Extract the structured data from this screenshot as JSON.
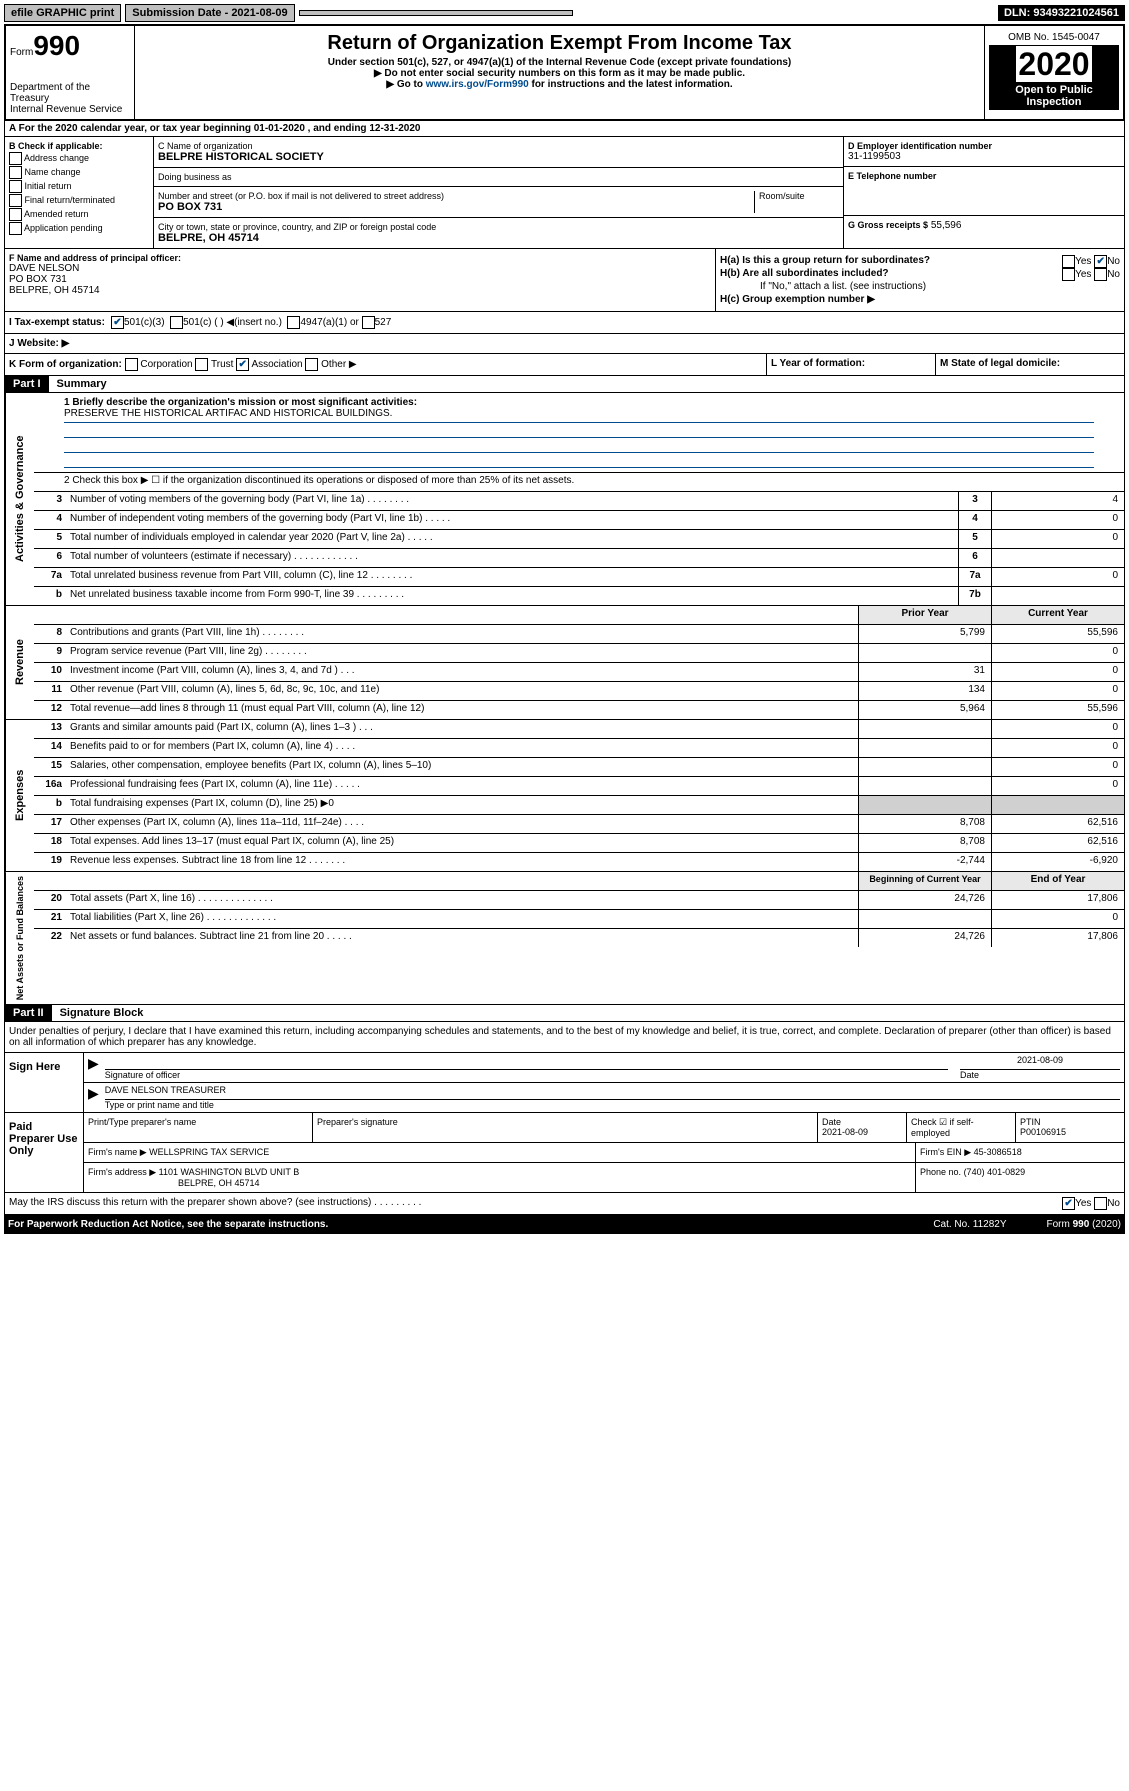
{
  "colors": {
    "link": "#004b8d",
    "black": "#000000",
    "white": "#ffffff",
    "shade": "#d0d0d0"
  },
  "topbar": {
    "efile": "efile GRAPHIC print",
    "submission": "Submission Date - 2021-08-09",
    "dln": "DLN: 93493221024561"
  },
  "header": {
    "form_label": "Form",
    "form_num": "990",
    "dept": "Department of the Treasury\nInternal Revenue Service",
    "title": "Return of Organization Exempt From Income Tax",
    "sub1": "Under section 501(c), 527, or 4947(a)(1) of the Internal Revenue Code (except private foundations)",
    "sub2": "▶ Do not enter social security numbers on this form as it may be made public.",
    "sub3_pre": "▶ Go to ",
    "sub3_link": "www.irs.gov/Form990",
    "sub3_post": " for instructions and the latest information.",
    "omb": "OMB No. 1545-0047",
    "year": "2020",
    "open1": "Open to Public",
    "open2": "Inspection"
  },
  "lineA": "A For the 2020 calendar year, or tax year beginning 01-01-2020    , and ending 12-31-2020",
  "blockB": {
    "title": "B Check if applicable:",
    "opts": [
      "Address change",
      "Name change",
      "Initial return",
      "Final return/terminated",
      "Amended return",
      "Application pending"
    ]
  },
  "blockC": {
    "name_lbl": "C Name of organization",
    "name": "BELPRE HISTORICAL SOCIETY",
    "dba_lbl": "Doing business as",
    "dba": "",
    "addr_lbl": "Number and street (or P.O. box if mail is not delivered to street address)",
    "room_lbl": "Room/suite",
    "addr": "PO BOX 731",
    "city_lbl": "City or town, state or province, country, and ZIP or foreign postal code",
    "city": "BELPRE, OH  45714"
  },
  "blockD": {
    "lbl": "D Employer identification number",
    "val": "31-1199503"
  },
  "blockE": {
    "lbl": "E Telephone number",
    "val": ""
  },
  "blockG": {
    "lbl": "G Gross receipts $",
    "val": "55,596"
  },
  "blockF": {
    "lbl": "F  Name and address of principal officer:",
    "name": "DAVE NELSON",
    "addr1": "PO BOX 731",
    "addr2": "BELPRE, OH  45714"
  },
  "blockH": {
    "a_lbl": "H(a)  Is this a group return for subordinates?",
    "a_yes": "Yes",
    "a_no": "No",
    "b_lbl": "H(b)  Are all subordinates included?",
    "b_yes": "Yes",
    "b_no": "No",
    "b_note": "If \"No,\" attach a list. (see instructions)",
    "c_lbl": "H(c)  Group exemption number ▶"
  },
  "rowI": {
    "lbl": "I  Tax-exempt status:",
    "o1": "501(c)(3)",
    "o2": "501(c) (  ) ◀(insert no.)",
    "o3": "4947(a)(1) or",
    "o4": "527"
  },
  "rowJ": {
    "lbl": "J  Website: ▶",
    "val": ""
  },
  "rowK": {
    "lbl": "K Form of organization:",
    "o1": "Corporation",
    "o2": "Trust",
    "o3": "Association",
    "o4": "Other ▶"
  },
  "rowL": {
    "lbl": "L Year of formation:",
    "val": ""
  },
  "rowM": {
    "lbl": "M State of legal domicile:",
    "val": ""
  },
  "part1": {
    "hdr": "Part I",
    "title": "Summary"
  },
  "summary": {
    "gov_label": "Activities & Governance",
    "line1_lbl": "1  Briefly describe the organization's mission or most significant activities:",
    "line1_val": "PRESERVE THE HISTORICAL ARTIFAC AND HISTORICAL BUILDINGS.",
    "line2": "2   Check this box ▶ ☐  if the organization discontinued its operations or disposed of more than 25% of its net assets.",
    "lines_gov": [
      {
        "n": "3",
        "d": "Number of voting members of the governing body (Part VI, line 1a)  .  .  .  .  .  .  .  .",
        "rn": "3",
        "v": "4"
      },
      {
        "n": "4",
        "d": "Number of independent voting members of the governing body (Part VI, line 1b)  .  .  .  .  .",
        "rn": "4",
        "v": "0"
      },
      {
        "n": "5",
        "d": "Total number of individuals employed in calendar year 2020 (Part V, line 2a)  .  .  .  .  .",
        "rn": "5",
        "v": "0"
      },
      {
        "n": "6",
        "d": "Total number of volunteers (estimate if necessary)  .  .  .  .  .  .  .  .  .  .  .  .",
        "rn": "6",
        "v": ""
      },
      {
        "n": "7a",
        "d": "Total unrelated business revenue from Part VIII, column (C), line 12  .  .  .  .  .  .  .  .",
        "rn": "7a",
        "v": "0"
      },
      {
        "n": "b",
        "d": "Net unrelated business taxable income from Form 990-T, line 39  .  .  .  .  .  .  .  .  .",
        "rn": "7b",
        "v": ""
      }
    ],
    "rev_label": "Revenue",
    "col_prior": "Prior Year",
    "col_current": "Current Year",
    "lines_rev": [
      {
        "n": "8",
        "d": "Contributions and grants (Part VIII, line 1h)  .  .  .  .  .  .  .  .",
        "p": "5,799",
        "c": "55,596"
      },
      {
        "n": "9",
        "d": "Program service revenue (Part VIII, line 2g)  .  .  .  .  .  .  .  .",
        "p": "",
        "c": "0"
      },
      {
        "n": "10",
        "d": "Investment income (Part VIII, column (A), lines 3, 4, and 7d )  .  .  .",
        "p": "31",
        "c": "0"
      },
      {
        "n": "11",
        "d": "Other revenue (Part VIII, column (A), lines 5, 6d, 8c, 9c, 10c, and 11e)",
        "p": "134",
        "c": "0"
      },
      {
        "n": "12",
        "d": "Total revenue—add lines 8 through 11 (must equal Part VIII, column (A), line 12)",
        "p": "5,964",
        "c": "55,596"
      }
    ],
    "exp_label": "Expenses",
    "lines_exp": [
      {
        "n": "13",
        "d": "Grants and similar amounts paid (Part IX, column (A), lines 1–3 )  .  .  .",
        "p": "",
        "c": "0"
      },
      {
        "n": "14",
        "d": "Benefits paid to or for members (Part IX, column (A), line 4)  .  .  .  .",
        "p": "",
        "c": "0"
      },
      {
        "n": "15",
        "d": "Salaries, other compensation, employee benefits (Part IX, column (A), lines 5–10)",
        "p": "",
        "c": "0"
      },
      {
        "n": "16a",
        "d": "Professional fundraising fees (Part IX, column (A), line 11e)  .  .  .  .  .",
        "p": "",
        "c": "0"
      },
      {
        "n": "b",
        "d": "Total fundraising expenses (Part IX, column (D), line 25) ▶0",
        "p": "shade",
        "c": "shade"
      },
      {
        "n": "17",
        "d": "Other expenses (Part IX, column (A), lines 11a–11d, 11f–24e)  .  .  .  .",
        "p": "8,708",
        "c": "62,516"
      },
      {
        "n": "18",
        "d": "Total expenses. Add lines 13–17 (must equal Part IX, column (A), line 25)",
        "p": "8,708",
        "c": "62,516"
      },
      {
        "n": "19",
        "d": "Revenue less expenses. Subtract line 18 from line 12  .  .  .  .  .  .  .",
        "p": "-2,744",
        "c": "-6,920"
      }
    ],
    "net_label": "Net Assets or Fund Balances",
    "col_begin": "Beginning of Current Year",
    "col_end": "End of Year",
    "lines_net": [
      {
        "n": "20",
        "d": "Total assets (Part X, line 16)  .  .  .  .  .  .  .  .  .  .  .  .  .  .",
        "p": "24,726",
        "c": "17,806"
      },
      {
        "n": "21",
        "d": "Total liabilities (Part X, line 26)  .  .  .  .  .  .  .  .  .  .  .  .  .",
        "p": "",
        "c": "0"
      },
      {
        "n": "22",
        "d": "Net assets or fund balances. Subtract line 21 from line 20  .  .  .  .  .",
        "p": "24,726",
        "c": "17,806"
      }
    ]
  },
  "part2": {
    "hdr": "Part II",
    "title": "Signature Block"
  },
  "sig": {
    "intro": "Under penalties of perjury, I declare that I have examined this return, including accompanying schedules and statements, and to the best of my knowledge and belief, it is true, correct, and complete. Declaration of preparer (other than officer) is based on all information of which preparer has any knowledge.",
    "sign_here": "Sign Here",
    "sig_officer": "Signature of officer",
    "date": "2021-08-09",
    "date_lbl": "Date",
    "name": "DAVE NELSON TREASURER",
    "name_lbl": "Type or print name and title",
    "paid": "Paid Preparer Use Only",
    "pt_name_lbl": "Print/Type preparer's name",
    "pt_sig_lbl": "Preparer's signature",
    "pt_date_lbl": "Date",
    "pt_date": "2021-08-09",
    "pt_check_lbl": "Check ☑ if self-employed",
    "ptin_lbl": "PTIN",
    "ptin": "P00106915",
    "firm_name_lbl": "Firm's name     ▶",
    "firm_name": "WELLSPRING TAX SERVICE",
    "firm_ein_lbl": "Firm's EIN ▶",
    "firm_ein": "45-3086518",
    "firm_addr_lbl": "Firm's address ▶",
    "firm_addr1": "1101 WASHINGTON BLVD UNIT B",
    "firm_addr2": "BELPRE, OH  45714",
    "phone_lbl": "Phone no.",
    "phone": "(740) 401-0829",
    "discuss": "May the IRS discuss this return with the preparer shown above? (see instructions)  .  .  .  .  .  .  .  .  .",
    "discuss_yes": "Yes",
    "discuss_no": "No"
  },
  "footer": {
    "paperwork": "For Paperwork Reduction Act Notice, see the separate instructions.",
    "cat": "Cat. No. 11282Y",
    "form": "Form 990 (2020)"
  }
}
